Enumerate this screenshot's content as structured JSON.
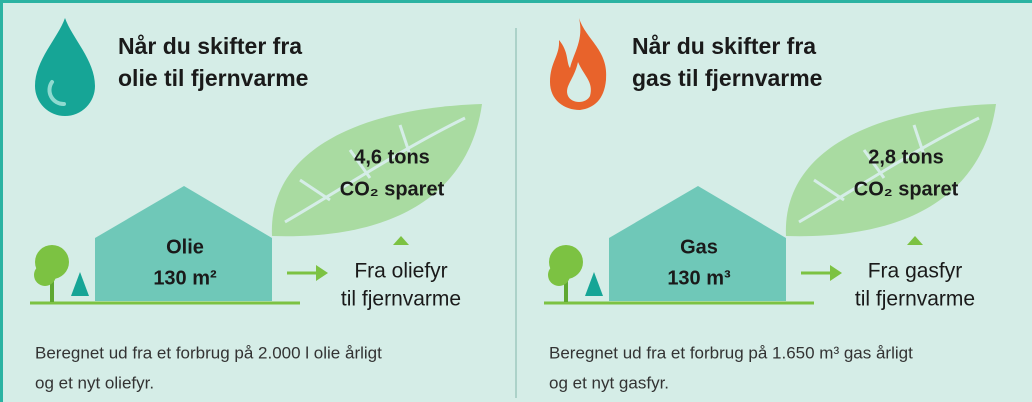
{
  "panels": [
    {
      "title": [
        "Når du skifter fra",
        "olie til fjernvarme"
      ],
      "savings": [
        "4,6 tons",
        "CO₂ sparet"
      ],
      "house": [
        "Olie",
        "130 m²"
      ],
      "change": [
        "Fra oliefyr",
        "til fjernvarme"
      ],
      "note": [
        "Beregnet ud fra et forbrug på 2.000 l olie årligt",
        "og et nyt oliefyr."
      ]
    },
    {
      "title": [
        "Når du skifter fra",
        "gas til fjernvarme"
      ],
      "savings": [
        "2,8 tons",
        "CO₂ sparet"
      ],
      "house": [
        "Gas",
        "130 m³"
      ],
      "change": [
        "Fra gasfyr",
        "til fjernvarme"
      ],
      "note": [
        "Beregnet ud fra et forbrug på 1.650 m³ gas årligt",
        "og et nyt gasfyr."
      ]
    }
  ]
}
